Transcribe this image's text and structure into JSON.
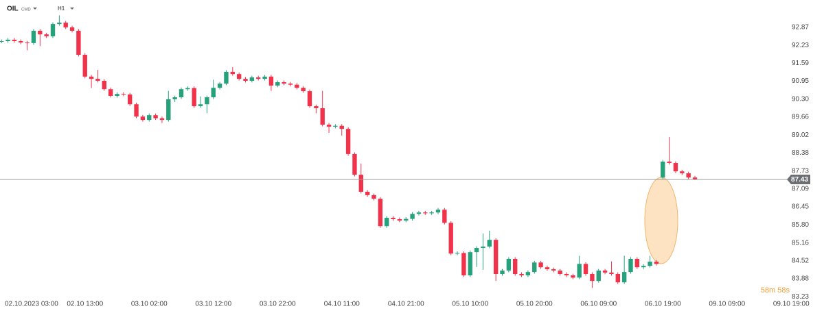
{
  "header": {
    "symbol": "OIL",
    "symbol_type": "CMD",
    "timeframe": "H1"
  },
  "countdown": "58m 58s",
  "chart_data": {
    "type": "candlestick",
    "categories": [
      null,
      null,
      null,
      "02.10.2023 03:00",
      null,
      null,
      null,
      null,
      null,
      null,
      null,
      null,
      null,
      "02.10 13:00",
      null,
      null,
      null,
      null,
      null,
      null,
      null,
      null,
      null,
      "03.10 02:00",
      null,
      null,
      null,
      null,
      null,
      null,
      null,
      null,
      null,
      "03.10 12:00",
      null,
      null,
      null,
      null,
      null,
      null,
      null,
      null,
      null,
      "03.10 22:00",
      null,
      null,
      null,
      null,
      null,
      null,
      null,
      null,
      null,
      "04.10 11:00",
      null,
      null,
      null,
      null,
      null,
      null,
      null,
      null,
      null,
      "04.10 21:00",
      null,
      null,
      null,
      null,
      null,
      null,
      null,
      null,
      null,
      "05.10 10:00",
      null,
      null,
      null,
      null,
      null,
      null,
      null,
      null,
      null,
      "05.10 20:00",
      null,
      null,
      null,
      null,
      null,
      null,
      null,
      null,
      null,
      "06.10 09:00",
      null,
      null,
      null,
      null,
      null,
      null,
      null,
      null,
      null,
      "06.10 19:00",
      null,
      null,
      null,
      null,
      null,
      null,
      null,
      null,
      null,
      "09.10 09:00",
      null,
      null,
      null,
      null,
      null,
      null,
      null,
      null,
      null,
      "09.10 19:00"
    ],
    "open": [
      92.36,
      92.38,
      92.43,
      92.38,
      92.33,
      92.31,
      92.75,
      92.62,
      92.55,
      92.99,
      93.04,
      92.87,
      92.75,
      91.89,
      91.11,
      91.03,
      90.96,
      90.66,
      90.42,
      90.49,
      90.47,
      90.12,
      89.68,
      89.56,
      89.73,
      89.62,
      89.56,
      90.3,
      90.37,
      90.66,
      90.7,
      90.05,
      90.12,
      90.37,
      90.71,
      90.86,
      91.28,
      91.2,
      91.03,
      90.96,
      91.08,
      91.03,
      91.11,
      90.79,
      90.91,
      90.86,
      90.82,
      90.71,
      90.59,
      90.05,
      89.98,
      89.39,
      89.32,
      89.35,
      89.24,
      88.34,
      87.6,
      86.99,
      86.87,
      86.74,
      85.76,
      86.06,
      86.01,
      85.96,
      86.02,
      86.2,
      86.25,
      86.22,
      86.25,
      86.35,
      85.88,
      84.78,
      84.8,
      84.0,
      84.83,
      84.98,
      85.03,
      85.27,
      84.05,
      84.17,
      84.59,
      84.05,
      84.0,
      84.12,
      84.46,
      84.29,
      84.22,
      84.17,
      84.05,
      84.0,
      83.92,
      84.41,
      84.05,
      83.8,
      84.17,
      84.1,
      84.05,
      83.75,
      84.12,
      84.59,
      84.29,
      84.34,
      84.49,
      87.5,
      88.07,
      88.02,
      87.72,
      87.65,
      87.5,
      null,
      null,
      null,
      null,
      null,
      null,
      null,
      null,
      null,
      null,
      null,
      null,
      null,
      null,
      null
    ],
    "high": [
      92.44,
      92.49,
      92.49,
      92.44,
      92.39,
      92.81,
      92.81,
      92.68,
      93.05,
      93.3,
      93.1,
      92.93,
      92.81,
      91.95,
      91.17,
      91.35,
      91.02,
      90.72,
      90.55,
      90.55,
      90.53,
      90.18,
      89.74,
      89.79,
      89.79,
      89.68,
      90.6,
      90.43,
      90.72,
      90.76,
      90.76,
      90.4,
      90.43,
      91.0,
      90.92,
      91.34,
      91.45,
      91.26,
      91.09,
      91.14,
      91.14,
      91.17,
      91.17,
      90.97,
      90.97,
      90.92,
      90.88,
      90.77,
      90.65,
      90.11,
      90.6,
      89.45,
      89.41,
      89.41,
      89.3,
      88.4,
      88.0,
      87.05,
      86.93,
      86.8,
      86.12,
      86.12,
      86.07,
      86.08,
      86.26,
      86.31,
      86.31,
      86.31,
      86.41,
      86.41,
      85.94,
      84.86,
      84.86,
      84.89,
      85.04,
      85.5,
      85.6,
      85.33,
      84.23,
      84.65,
      84.65,
      84.11,
      84.18,
      84.52,
      84.52,
      84.35,
      84.28,
      84.23,
      84.11,
      84.06,
      84.7,
      84.47,
      84.11,
      84.23,
      84.23,
      84.5,
      84.11,
      84.7,
      84.65,
      84.65,
      84.4,
      84.7,
      84.55,
      88.13,
      88.95,
      88.08,
      87.78,
      87.71,
      87.56,
      null,
      null,
      null,
      null,
      null,
      null,
      null,
      null,
      null,
      null,
      null,
      null,
      null,
      null,
      null
    ],
    "low": [
      92.3,
      92.32,
      92.32,
      92.27,
      92.05,
      92.25,
      92.2,
      92.49,
      92.49,
      92.93,
      92.81,
      92.69,
      91.83,
      91.05,
      90.7,
      90.9,
      90.6,
      90.36,
      90.36,
      90.41,
      90.06,
      89.62,
      89.5,
      89.5,
      89.56,
      89.45,
      89.5,
      90.2,
      90.31,
      90.6,
      89.99,
      89.99,
      89.8,
      90.31,
      90.65,
      90.8,
      91.14,
      90.97,
      90.9,
      90.9,
      90.97,
      90.97,
      90.6,
      90.73,
      90.8,
      90.76,
      90.65,
      90.53,
      89.99,
      89.8,
      89.33,
      89.1,
      89.26,
      89.0,
      88.28,
      87.54,
      86.93,
      86.81,
      86.68,
      85.7,
      85.7,
      85.95,
      85.9,
      85.9,
      85.96,
      86.14,
      86.16,
      86.16,
      86.19,
      85.82,
      84.72,
      84.72,
      83.94,
      83.94,
      84.3,
      84.2,
      84.97,
      83.8,
      83.99,
      84.11,
      83.99,
      83.94,
      83.94,
      84.06,
      84.23,
      84.16,
      84.11,
      83.99,
      83.94,
      83.86,
      83.86,
      83.99,
      83.55,
      83.74,
      84.04,
      83.99,
      83.69,
      83.69,
      84.06,
      84.23,
      84.23,
      84.28,
      84.35,
      87.44,
      87.96,
      87.66,
      87.59,
      87.44,
      87.41,
      null,
      null,
      null,
      null,
      null,
      null,
      null,
      null,
      null,
      null,
      null,
      null,
      null,
      null,
      null
    ],
    "close": [
      92.38,
      92.43,
      92.38,
      92.33,
      92.31,
      92.75,
      92.62,
      92.55,
      92.99,
      93.04,
      92.87,
      92.75,
      91.89,
      91.11,
      91.03,
      90.96,
      90.66,
      90.42,
      90.49,
      90.47,
      90.12,
      89.68,
      89.56,
      89.73,
      89.62,
      89.56,
      90.3,
      90.37,
      90.66,
      90.7,
      90.05,
      90.12,
      90.37,
      90.71,
      90.86,
      91.28,
      91.2,
      91.03,
      90.96,
      91.08,
      91.03,
      91.11,
      90.79,
      90.91,
      90.86,
      90.82,
      90.71,
      90.59,
      90.05,
      89.98,
      89.39,
      89.32,
      89.35,
      89.24,
      88.34,
      87.6,
      86.99,
      86.87,
      86.74,
      85.76,
      86.06,
      86.01,
      85.96,
      86.02,
      86.2,
      86.25,
      86.22,
      86.25,
      86.35,
      85.88,
      84.78,
      84.8,
      84.0,
      84.83,
      84.98,
      85.03,
      85.27,
      84.05,
      84.17,
      84.59,
      84.05,
      84.0,
      84.12,
      84.46,
      84.29,
      84.22,
      84.17,
      84.05,
      84.0,
      83.92,
      84.41,
      84.05,
      83.8,
      84.17,
      84.1,
      84.05,
      83.75,
      84.12,
      84.59,
      84.29,
      84.34,
      84.49,
      84.41,
      88.07,
      88.02,
      87.72,
      87.65,
      87.5,
      87.43,
      null,
      null,
      null,
      null,
      null,
      null,
      null,
      null,
      null,
      null,
      null,
      null,
      null,
      null,
      null
    ],
    "up_color": "#26a17b",
    "down_color": "#f0334b",
    "ylim": [
      83.07,
      93.85
    ],
    "yticks": [
      92.87,
      92.23,
      91.59,
      90.95,
      {
        "value": 90.3,
        "label": "90.30"
      },
      89.66,
      89.02,
      88.38,
      87.73,
      87.09,
      86.45,
      {
        "value": 85.8,
        "label": "85.80"
      },
      85.16,
      84.52,
      83.88,
      83.23
    ],
    "last_price": 87.43
  }
}
